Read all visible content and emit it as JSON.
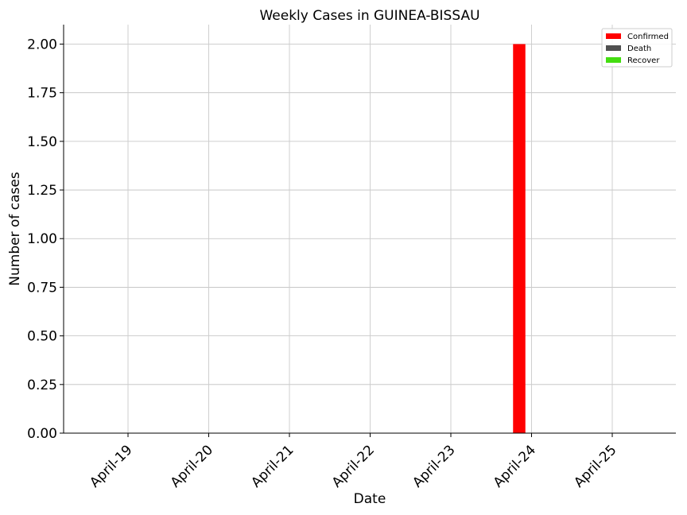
{
  "chart_data": {
    "type": "bar",
    "title": "Weekly Cases in GUINEA-BISSAU",
    "xlabel": "Date",
    "ylabel": "Number of cases",
    "categories": [
      "April-19",
      "April-20",
      "April-21",
      "April-22",
      "April-23",
      "April-24",
      "April-25"
    ],
    "series": [
      {
        "name": "Confirmed",
        "color": "#ff0000",
        "values": [
          0,
          0,
          0,
          0,
          0,
          2,
          0
        ]
      },
      {
        "name": "Death",
        "color": "#505050",
        "values": [
          0,
          0,
          0,
          0,
          0,
          0,
          0
        ]
      },
      {
        "name": "Recover",
        "color": "#44dd11",
        "values": [
          0,
          0,
          0,
          0,
          0,
          0,
          0
        ]
      }
    ],
    "ylim": [
      0,
      2.1
    ],
    "yticks": [
      "0.00",
      "0.25",
      "0.50",
      "0.75",
      "1.00",
      "1.25",
      "1.50",
      "1.75",
      "2.00"
    ],
    "grid": true,
    "legend_position": "top-right"
  }
}
